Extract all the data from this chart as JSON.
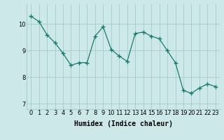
{
  "x": [
    0,
    1,
    2,
    3,
    4,
    5,
    6,
    7,
    8,
    9,
    10,
    11,
    12,
    13,
    14,
    15,
    16,
    17,
    18,
    19,
    20,
    21,
    22,
    23
  ],
  "y": [
    10.3,
    10.1,
    9.6,
    9.3,
    8.9,
    8.45,
    8.55,
    8.55,
    9.55,
    9.9,
    9.05,
    8.8,
    8.6,
    9.65,
    9.7,
    9.55,
    9.45,
    9.0,
    8.55,
    7.5,
    7.4,
    7.6,
    7.75,
    7.65
  ],
  "line_color": "#1a7a6e",
  "marker": "+",
  "marker_size": 4,
  "bg_color": "#cce8e8",
  "grid_color": "#aacece",
  "xlabel": "Humidex (Indice chaleur)",
  "ylim": [
    6.8,
    10.75
  ],
  "xlim": [
    -0.5,
    23.5
  ],
  "yticks": [
    7,
    8,
    9,
    10
  ],
  "xticks": [
    0,
    1,
    2,
    3,
    4,
    5,
    6,
    7,
    8,
    9,
    10,
    11,
    12,
    13,
    14,
    15,
    16,
    17,
    18,
    19,
    20,
    21,
    22,
    23
  ],
  "tick_fontsize": 6,
  "xlabel_fontsize": 7
}
